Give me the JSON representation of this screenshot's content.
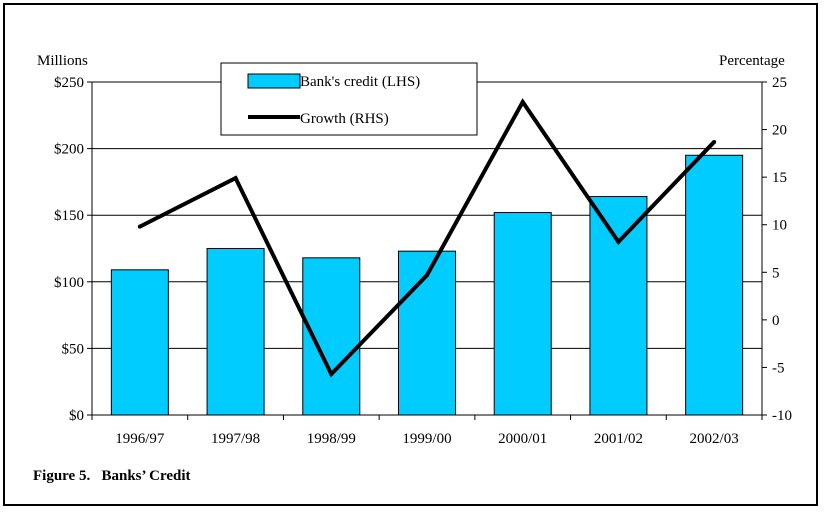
{
  "caption": "Figure 5.   Banks’ Credit",
  "chart_data": {
    "type": "bar",
    "categories": [
      "1996/97",
      "1997/98",
      "1998/99",
      "1999/00",
      "2000/01",
      "2001/02",
      "2002/03"
    ],
    "series": [
      {
        "name": "Bank's credit (LHS)",
        "type": "bar",
        "axis": "left",
        "color": "#00CCFF",
        "values": [
          109,
          125,
          118,
          123,
          152,
          164,
          195
        ]
      },
      {
        "name": "Growth (RHS)",
        "type": "line",
        "axis": "right",
        "color": "#000000",
        "values": [
          9.8,
          14.9,
          -5.7,
          4.7,
          22.9,
          8.2,
          18.7
        ]
      }
    ],
    "ylabel_left": "Millions",
    "ylabel_right": "Percentage",
    "ylim_left": [
      0,
      250
    ],
    "ylim_right": [
      -10,
      25
    ],
    "yticks_left": [
      "$0",
      "$50",
      "$100",
      "$150",
      "$200",
      "$250"
    ],
    "yticks_right": [
      "-10",
      "-5",
      "0",
      "5",
      "10",
      "15",
      "20",
      "25"
    ],
    "grid": true,
    "legend_position": "top-left"
  }
}
